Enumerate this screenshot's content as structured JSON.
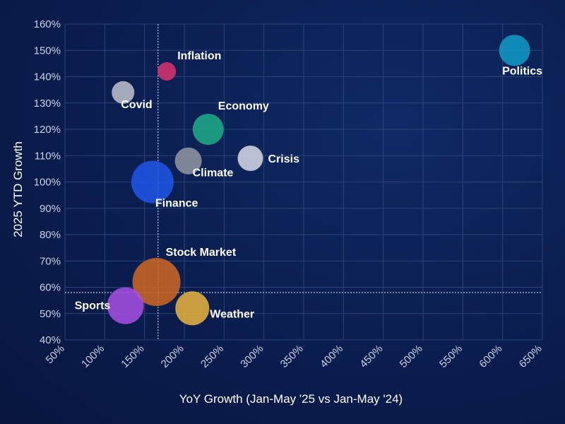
{
  "chart_data": {
    "type": "scatter",
    "title": "",
    "xlabel": "YoY Growth (Jan-May '25 vs Jan-May '24)",
    "ylabel": "2025 YTD Growth",
    "xlim": [
      50,
      650
    ],
    "ylim": [
      40,
      160
    ],
    "x_ticks": [
      "50%",
      "100%",
      "150%",
      "200%",
      "250%",
      "300%",
      "350%",
      "400%",
      "450%",
      "500%",
      "550%",
      "600%",
      "650%"
    ],
    "y_ticks": [
      "40%",
      "50%",
      "60%",
      "70%",
      "80%",
      "90%",
      "100%",
      "110%",
      "120%",
      "130%",
      "140%",
      "150%",
      "160%"
    ],
    "grid": true,
    "reference_lines": {
      "x": 167,
      "y": 58
    },
    "points": [
      {
        "label": "Politics",
        "x": 615,
        "y": 150,
        "size": 22,
        "color": "#1197c4"
      },
      {
        "label": "Inflation",
        "x": 178,
        "y": 142,
        "size": 13,
        "color": "#d6336c"
      },
      {
        "label": "Covid",
        "x": 123,
        "y": 134,
        "size": 16,
        "color": "#b9bec9"
      },
      {
        "label": "Economy",
        "x": 230,
        "y": 120,
        "size": 22,
        "color": "#1fa886"
      },
      {
        "label": "Crisis",
        "x": 283,
        "y": 109,
        "size": 18,
        "color": "#d3d6df"
      },
      {
        "label": "Climate",
        "x": 205,
        "y": 108,
        "size": 19,
        "color": "#8e949f"
      },
      {
        "label": "Finance",
        "x": 160,
        "y": 100,
        "size": 30,
        "color": "#1f55e6"
      },
      {
        "label": "Stock Market",
        "x": 165,
        "y": 62,
        "size": 34,
        "color": "#c96624"
      },
      {
        "label": "Sports",
        "x": 126,
        "y": 53,
        "size": 26,
        "color": "#a44ee0"
      },
      {
        "label": "Weather",
        "x": 210,
        "y": 52,
        "size": 24,
        "color": "#e3b040"
      }
    ]
  }
}
